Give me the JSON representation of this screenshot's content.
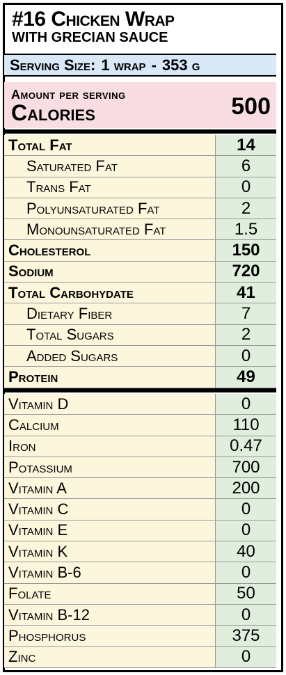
{
  "title": {
    "main": "#16 Chicken Wrap",
    "sub": "WITH GRECIAN SAUCE"
  },
  "serving": {
    "label": "Serving Size:",
    "amount": "1 wrap",
    "separator": "-",
    "weight": "353 g"
  },
  "calories": {
    "amount_label": "Amount per serving",
    "label": "Calories",
    "value": "500"
  },
  "macros": [
    {
      "label": "Total Fat",
      "value": "14",
      "bold": true,
      "indent": false
    },
    {
      "label": "Saturated Fat",
      "value": "6",
      "bold": false,
      "indent": true
    },
    {
      "label": "Trans Fat",
      "value": "0",
      "bold": false,
      "indent": true
    },
    {
      "label": "Polyunsaturated Fat",
      "value": "2",
      "bold": false,
      "indent": true
    },
    {
      "label": "Monounsaturated Fat",
      "value": "1.5",
      "bold": false,
      "indent": true
    },
    {
      "label": "Cholesterol",
      "value": "150",
      "bold": true,
      "indent": false
    },
    {
      "label": "Sodium",
      "value": "720",
      "bold": true,
      "indent": false
    },
    {
      "label": "Total Carbohydate",
      "value": "41",
      "bold": true,
      "indent": false
    },
    {
      "label": "Dietary Fiber",
      "value": "7",
      "bold": false,
      "indent": true
    },
    {
      "label": "Total Sugars",
      "value": "2",
      "bold": false,
      "indent": true
    },
    {
      "label": "Added Sugars",
      "value": "0",
      "bold": false,
      "indent": true
    },
    {
      "label": "Protein",
      "value": "49",
      "bold": true,
      "indent": false
    }
  ],
  "micros": [
    {
      "label": "Vitamin D",
      "value": "0"
    },
    {
      "label": "Calcium",
      "value": "110"
    },
    {
      "label": "Iron",
      "value": "0.47"
    },
    {
      "label": "Potassium",
      "value": "700"
    },
    {
      "label": "Vitamin A",
      "value": "200"
    },
    {
      "label": "Vitamin C",
      "value": "0"
    },
    {
      "label": "Vitamin E",
      "value": "0"
    },
    {
      "label": "Vitamin K",
      "value": "40"
    },
    {
      "label": "Vitamin B-6",
      "value": "0"
    },
    {
      "label": "Folate",
      "value": "50"
    },
    {
      "label": "Vitamin B-12",
      "value": "0"
    },
    {
      "label": "Phosphorus",
      "value": "375"
    },
    {
      "label": "Zinc",
      "value": "0"
    }
  ],
  "colors": {
    "serving_bg": "#d8e8f6",
    "calories_bg": "#f8dde3",
    "label_bg": "#fbf6dc",
    "value_bg": "#dfeedd"
  }
}
